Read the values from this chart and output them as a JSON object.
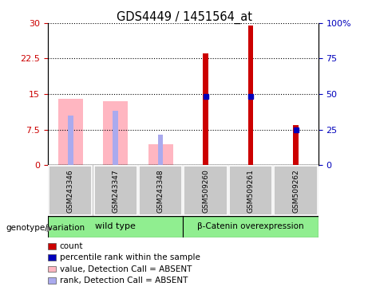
{
  "title": "GDS4449 / 1451564_at",
  "samples": [
    "GSM243346",
    "GSM243347",
    "GSM243348",
    "GSM509260",
    "GSM509261",
    "GSM509262"
  ],
  "count_values": [
    null,
    null,
    null,
    23.5,
    29.5,
    8.5
  ],
  "percentile_values_left": [
    null,
    null,
    null,
    14.5,
    14.5,
    7.5
  ],
  "absent_value_bars": [
    14.0,
    13.5,
    4.5,
    null,
    null,
    null
  ],
  "absent_rank_bars": [
    10.5,
    11.5,
    6.5,
    null,
    null,
    null
  ],
  "ylim_left": [
    0,
    30
  ],
  "ylim_right": [
    0,
    100
  ],
  "yticks_left": [
    0,
    7.5,
    15,
    22.5,
    30
  ],
  "yticks_right": [
    0,
    25,
    50,
    75,
    100
  ],
  "ytick_labels_left": [
    "0",
    "7.5",
    "15",
    "22.5",
    "30"
  ],
  "ytick_labels_right": [
    "0",
    "25",
    "50",
    "75",
    "100%"
  ],
  "left_color": "#CC0000",
  "right_color": "#0000BB",
  "absent_value_color": "#FFB6C1",
  "absent_rank_color": "#AAAAEE",
  "count_color": "#CC0000",
  "percentile_color": "#0000BB",
  "wide_bar_width": 0.55,
  "narrow_bar_width": 0.12,
  "red_bar_width": 0.12,
  "group_separator": 2.5,
  "legend_items": [
    {
      "label": "count",
      "color": "#CC0000"
    },
    {
      "label": "percentile rank within the sample",
      "color": "#0000BB"
    },
    {
      "label": "value, Detection Call = ABSENT",
      "color": "#FFB6C1"
    },
    {
      "label": "rank, Detection Call = ABSENT",
      "color": "#AAAAEE"
    }
  ]
}
